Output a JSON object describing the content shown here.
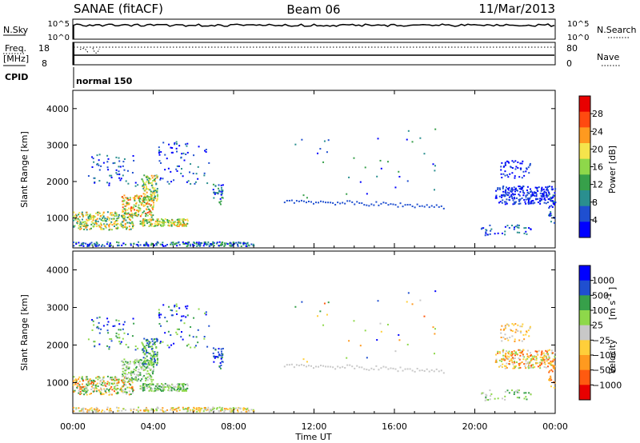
{
  "header": {
    "left": "SANAE (fitACF)",
    "center": "Beam 06",
    "right": "11/Mar/2013"
  },
  "colors": {
    "power_scale": [
      "#0000ff",
      "#1f4fd0",
      "#2a8f8f",
      "#37a04a",
      "#8ed84a",
      "#f5e44c",
      "#ff9a1f",
      "#ff4a10",
      "#e80000"
    ],
    "velocity_scale": [
      "#e80000",
      "#ff5a10",
      "#ff9a1f",
      "#ffcf3a",
      "#c8c8c8",
      "#8ed84a",
      "#37a04a",
      "#1f4fd0",
      "#0000ff"
    ]
  },
  "chart_data": [
    {
      "name": "nsky_nsearch",
      "type": "line",
      "left_label": "N.Sky",
      "right_label": "N.Search",
      "left_ticks": [
        "10^5",
        "10^0"
      ],
      "right_ticks": [
        "10^5",
        "10^0"
      ]
    },
    {
      "name": "freq_nave",
      "type": "line",
      "left_label_top": "Freq.",
      "left_label_bottom": "[MHz]",
      "right_label": "Nave",
      "left_ticks": [
        "18",
        "8"
      ],
      "right_ticks": [
        "80",
        "0"
      ]
    },
    {
      "name": "cpid",
      "type": "table",
      "label": "CPID",
      "value": "normal 150"
    },
    {
      "name": "power",
      "type": "heatmap",
      "ylabel": "Slant Range [km]",
      "yticks": [
        "4000",
        "3000",
        "2000",
        "1000"
      ],
      "ytick_values": [
        4000,
        3000,
        2000,
        1000
      ],
      "ylim": [
        180,
        4500
      ],
      "xlim": [
        0,
        24
      ],
      "colorbar_label": "Power [dB]",
      "colorbar_ticks": [
        "28",
        "24",
        "20",
        "16",
        "12",
        "8",
        "4"
      ],
      "colorbar_range": [
        0,
        32
      ]
    },
    {
      "name": "velocity",
      "type": "heatmap",
      "ylabel": "Slant Range [km]",
      "yticks": [
        "4000",
        "3000",
        "2000",
        "1000"
      ],
      "ytick_values": [
        4000,
        3000,
        2000,
        1000
      ],
      "ylim": [
        180,
        4500
      ],
      "xlim": [
        0,
        24
      ],
      "colorbar_label": "Velocity",
      "colorbar_unit": "[m s",
      "colorbar_unit_sup": "-1",
      "colorbar_unit_end": "]",
      "colorbar_ticks": [
        "1000",
        "500",
        "100",
        "25",
        "−25",
        "−100",
        "−500",
        "−1000"
      ]
    }
  ],
  "xaxis": {
    "ticks": [
      "00:00",
      "04:00",
      "08:00",
      "12:00",
      "16:00",
      "20:00",
      "00:00"
    ],
    "tick_hours": [
      0,
      4,
      8,
      12,
      16,
      20,
      24
    ],
    "label": "Time UT"
  }
}
